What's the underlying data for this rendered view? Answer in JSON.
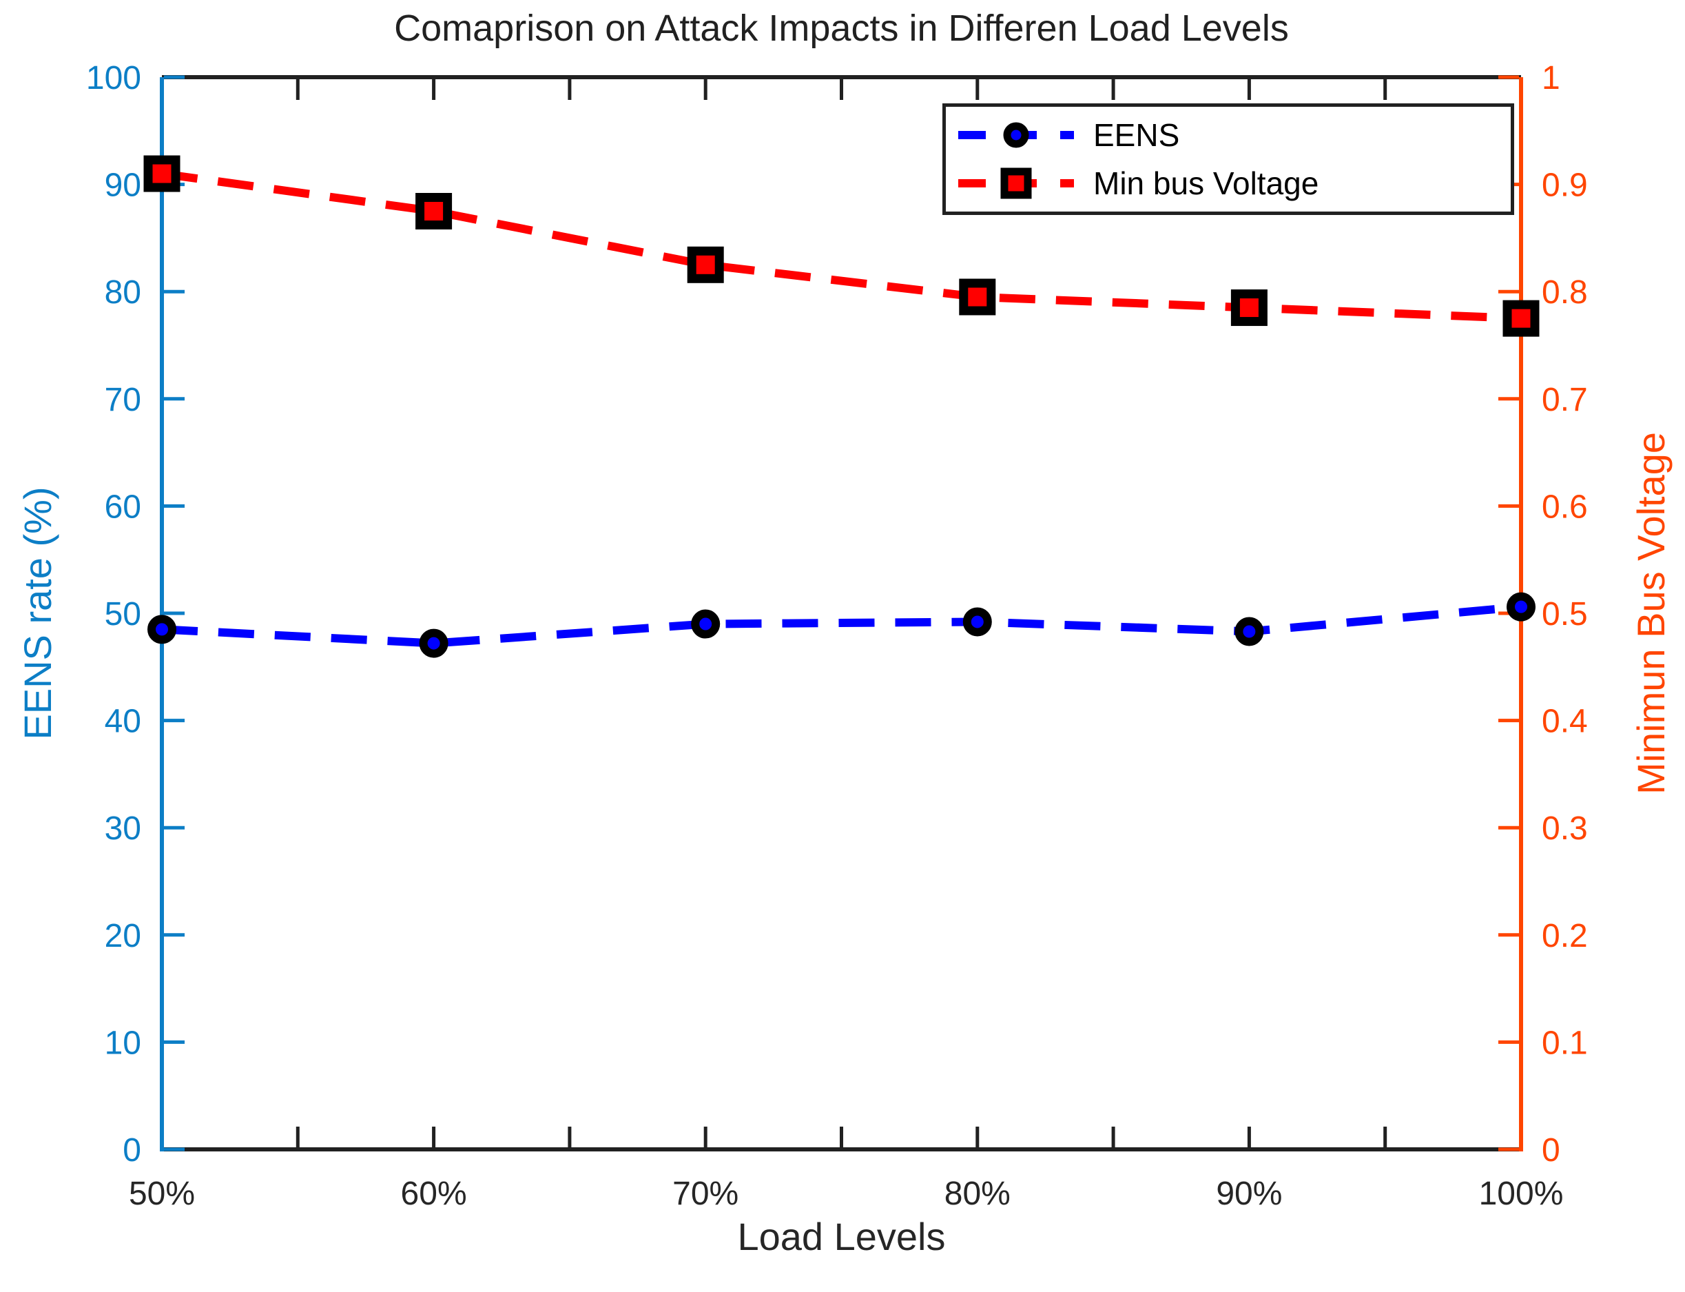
{
  "figure": {
    "background": "#ffffff"
  },
  "chart_data": {
    "type": "line",
    "title": "Comaprison on Attack Impacts in Differen Load Levels",
    "xlabel": "Load Levels",
    "ylabel_left": "EENS rate (%)",
    "ylabel_right": "Minimun Bus Voltage",
    "x_tick_values": [
      50,
      60,
      70,
      80,
      90,
      100
    ],
    "x_tick_labels": [
      "50%",
      "60%",
      "70%",
      "80%",
      "90%",
      "100%"
    ],
    "x_minor_tick_values": [
      55,
      65,
      75,
      85,
      95
    ],
    "xlim": [
      50,
      100
    ],
    "grid": "off",
    "left_axis": {
      "color": "#0c7ec6",
      "lim": [
        0,
        100
      ],
      "tick_values": [
        0,
        10,
        20,
        30,
        40,
        50,
        60,
        70,
        80,
        90,
        100
      ],
      "tick_labels": [
        "0",
        "10",
        "20",
        "30",
        "40",
        "50",
        "60",
        "70",
        "80",
        "90",
        "100"
      ]
    },
    "right_axis": {
      "color": "#ff4500",
      "lim": [
        0,
        1
      ],
      "tick_values": [
        0,
        0.1,
        0.2,
        0.3,
        0.4,
        0.5,
        0.6,
        0.7,
        0.8,
        0.9,
        1
      ],
      "tick_labels": [
        "0",
        "0.1",
        "0.2",
        "0.3",
        "0.4",
        "0.5",
        "0.6",
        "0.7",
        "0.8",
        "0.9",
        "1"
      ]
    },
    "axis_box_color": "#212121",
    "x_tick_label_color": "#262626",
    "series": [
      {
        "name": "EENS",
        "axis": "left",
        "color": "#0000ff",
        "marker": "circle",
        "line_style": "dashed",
        "x": [
          50,
          60,
          70,
          80,
          90,
          100
        ],
        "values": [
          48.5,
          47.2,
          49.0,
          49.2,
          48.3,
          50.6
        ]
      },
      {
        "name": "Min bus Voltage",
        "axis": "right",
        "color": "#ff0000",
        "marker": "square",
        "line_style": "dashed",
        "x": [
          50,
          60,
          70,
          80,
          90,
          100
        ],
        "values": [
          0.91,
          0.875,
          0.825,
          0.795,
          0.785,
          0.775
        ]
      }
    ],
    "legend": {
      "position": "northeast",
      "entries": [
        "EENS",
        "Min bus Voltage"
      ]
    }
  }
}
